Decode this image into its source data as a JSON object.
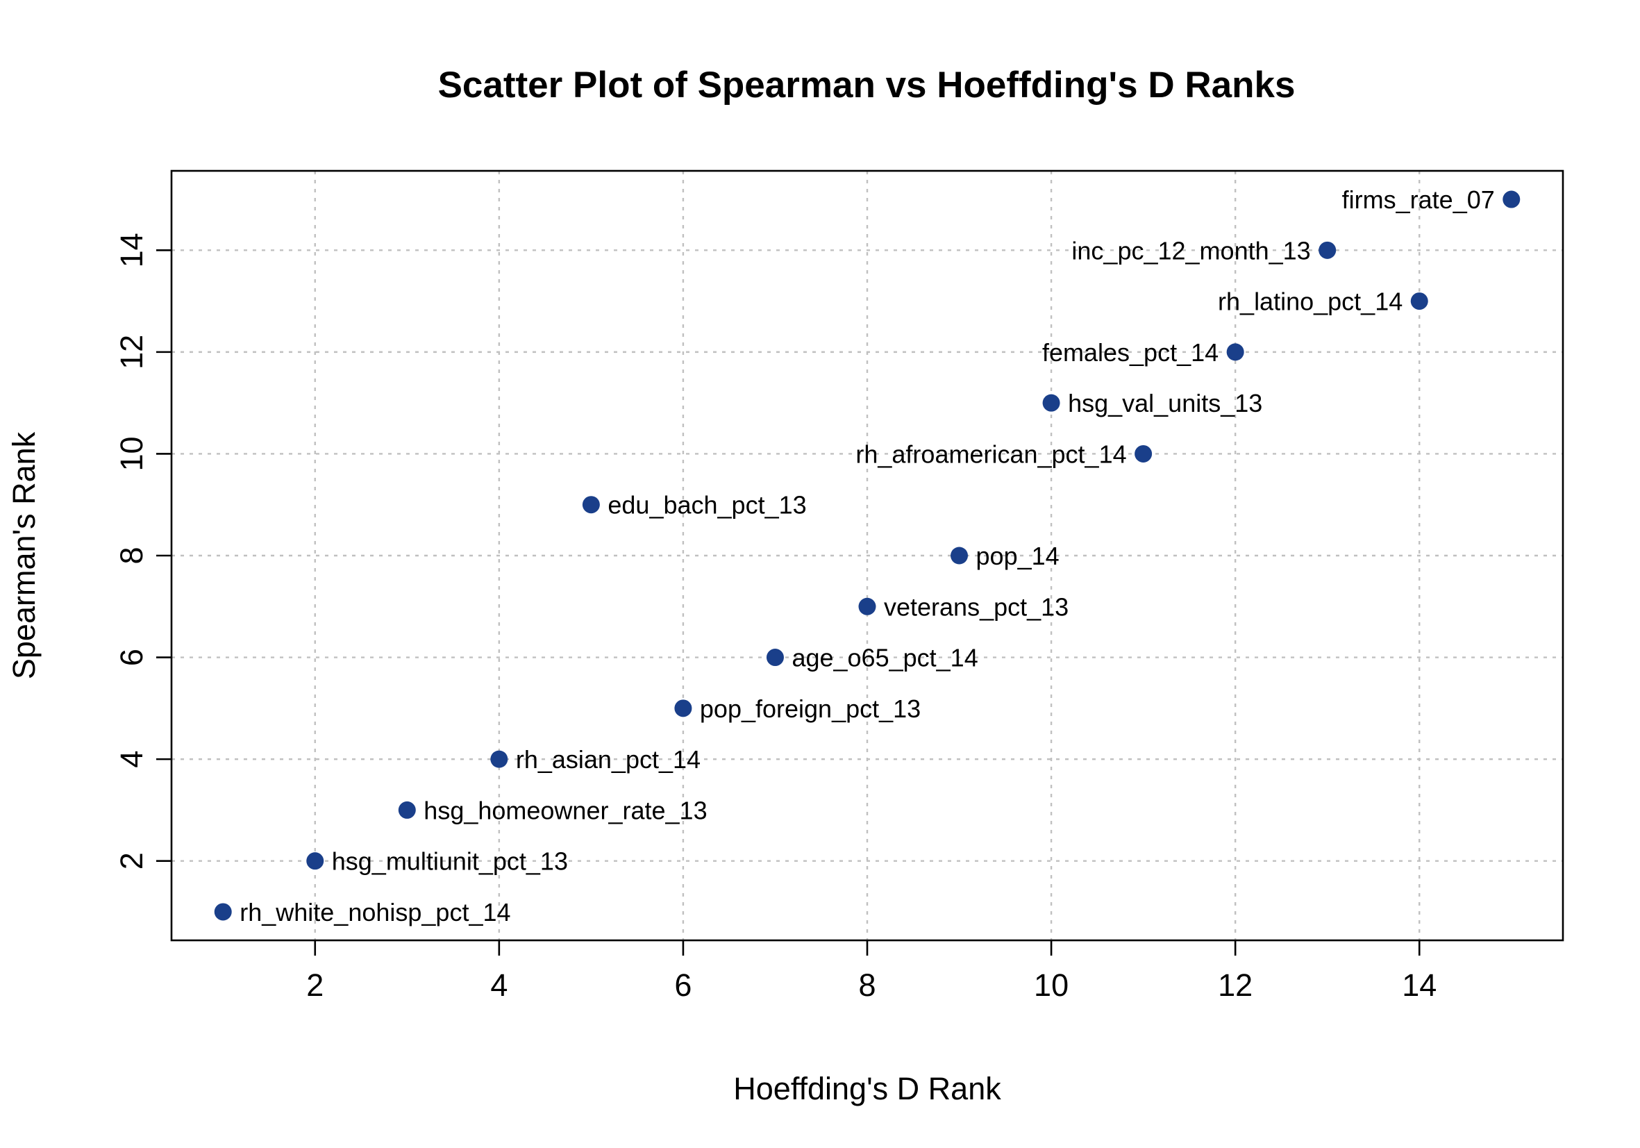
{
  "chart_data": {
    "type": "scatter",
    "title": "Scatter Plot of Spearman vs Hoeffding's D Ranks",
    "xlabel": "Hoeffding's D Rank",
    "ylabel": "Spearman's Rank",
    "xlim": [
      0.44,
      15.56
    ],
    "ylim": [
      0.44,
      15.56
    ],
    "xticks": [
      "2",
      "4",
      "6",
      "8",
      "10",
      "12",
      "14"
    ],
    "yticks": [
      "2",
      "4",
      "6",
      "8",
      "10",
      "12",
      "14"
    ],
    "grid": true,
    "point_color": "#1a3f8a",
    "points": [
      {
        "label": "rh_white_nohisp_pct_14",
        "x": 1,
        "y": 1,
        "label_side": "right"
      },
      {
        "label": "hsg_multiunit_pct_13",
        "x": 2,
        "y": 2,
        "label_side": "right"
      },
      {
        "label": "hsg_homeowner_rate_13",
        "x": 3,
        "y": 3,
        "label_side": "right"
      },
      {
        "label": "rh_asian_pct_14",
        "x": 4,
        "y": 4,
        "label_side": "right"
      },
      {
        "label": "pop_foreign_pct_13",
        "x": 6,
        "y": 5,
        "label_side": "right"
      },
      {
        "label": "age_o65_pct_14",
        "x": 7,
        "y": 6,
        "label_side": "right"
      },
      {
        "label": "veterans_pct_13",
        "x": 8,
        "y": 7,
        "label_side": "right"
      },
      {
        "label": "pop_14",
        "x": 9,
        "y": 8,
        "label_side": "right"
      },
      {
        "label": "edu_bach_pct_13",
        "x": 5,
        "y": 9,
        "label_side": "right"
      },
      {
        "label": "rh_afroamerican_pct_14",
        "x": 11,
        "y": 10,
        "label_side": "left"
      },
      {
        "label": "hsg_val_units_13",
        "x": 10,
        "y": 11,
        "label_side": "right"
      },
      {
        "label": "females_pct_14",
        "x": 12,
        "y": 12,
        "label_side": "left"
      },
      {
        "label": "rh_latino_pct_14",
        "x": 14,
        "y": 13,
        "label_side": "left"
      },
      {
        "label": "inc_pc_12_month_13",
        "x": 13,
        "y": 14,
        "label_side": "left"
      },
      {
        "label": "firms_rate_07",
        "x": 15,
        "y": 15,
        "label_side": "left"
      }
    ]
  }
}
